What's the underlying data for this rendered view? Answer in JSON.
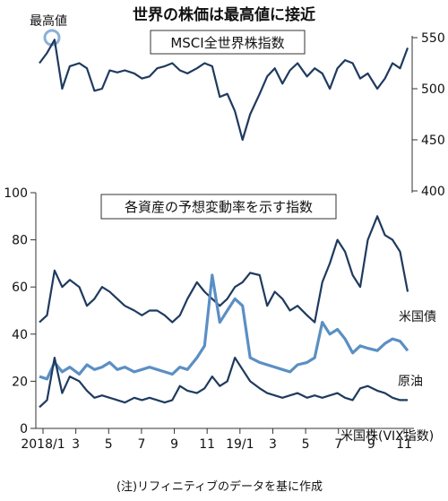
{
  "title": "世界の株価は最高値に接近",
  "source_note": "(注)リフィニティブのデータを基に作成",
  "annotation": "最高値",
  "chart_data": [
    {
      "type": "line",
      "title": "MSCI全世界株指数",
      "y_axis_side": "right",
      "ylim": [
        400,
        550
      ],
      "yticks": [
        400,
        450,
        500,
        550
      ],
      "x": [
        2018.0,
        2018.04,
        2018.08,
        2018.12,
        2018.16,
        2018.21,
        2018.25,
        2018.29,
        2018.33,
        2018.37,
        2018.41,
        2018.45,
        2018.5,
        2018.54,
        2018.58,
        2018.62,
        2018.66,
        2018.7,
        2018.74,
        2018.78,
        2018.83,
        2018.87,
        2018.91,
        2018.95,
        2018.99,
        2019.03,
        2019.07,
        2019.11,
        2019.16,
        2019.2,
        2019.24,
        2019.28,
        2019.32,
        2019.36,
        2019.41,
        2019.45,
        2019.49,
        2019.53,
        2019.57,
        2019.61,
        2019.65,
        2019.69,
        2019.73,
        2019.78,
        2019.82,
        2019.86,
        2019.9,
        2019.94
      ],
      "series": [
        {
          "name": "",
          "color": "#1f3a5f",
          "values": [
            525,
            535,
            548,
            500,
            522,
            525,
            520,
            498,
            500,
            518,
            516,
            518,
            515,
            510,
            512,
            520,
            522,
            525,
            518,
            515,
            520,
            525,
            522,
            492,
            495,
            478,
            450,
            475,
            495,
            512,
            520,
            505,
            518,
            525,
            512,
            520,
            515,
            500,
            520,
            528,
            525,
            510,
            515,
            500,
            510,
            525,
            520,
            540
          ]
        }
      ]
    },
    {
      "type": "line",
      "title": "各資産の予想変動率を示す指数",
      "y_axis_side": "left",
      "ylim": [
        0,
        100
      ],
      "yticks": [
        0,
        20,
        40,
        60,
        80,
        100
      ],
      "x_tick_labels": [
        "2018/1",
        "3",
        "5",
        "7",
        "9",
        "11",
        "19/1",
        "3",
        "5",
        "7",
        "9",
        "11"
      ],
      "x": [
        2018.0,
        2018.04,
        2018.08,
        2018.12,
        2018.16,
        2018.21,
        2018.25,
        2018.29,
        2018.33,
        2018.37,
        2018.41,
        2018.45,
        2018.5,
        2018.54,
        2018.58,
        2018.62,
        2018.66,
        2018.7,
        2018.74,
        2018.78,
        2018.83,
        2018.87,
        2018.91,
        2018.95,
        2018.99,
        2019.03,
        2019.07,
        2019.11,
        2019.16,
        2019.2,
        2019.24,
        2019.28,
        2019.32,
        2019.36,
        2019.41,
        2019.45,
        2019.49,
        2019.53,
        2019.57,
        2019.61,
        2019.65,
        2019.69,
        2019.73,
        2019.78,
        2019.82,
        2019.86,
        2019.9,
        2019.94
      ],
      "series": [
        {
          "name": "米国債",
          "color": "#1f3a5f",
          "values": [
            45,
            48,
            67,
            60,
            63,
            60,
            52,
            55,
            60,
            58,
            55,
            52,
            50,
            48,
            50,
            50,
            48,
            45,
            48,
            55,
            62,
            58,
            55,
            52,
            55,
            60,
            62,
            66,
            65,
            52,
            58,
            55,
            50,
            52,
            48,
            45,
            62,
            70,
            80,
            75,
            65,
            60,
            80,
            90,
            82,
            80,
            75,
            58
          ]
        },
        {
          "name": "原油",
          "color": "#5b8fc4",
          "values": [
            22,
            21,
            28,
            24,
            26,
            23,
            27,
            25,
            26,
            28,
            25,
            26,
            24,
            25,
            26,
            25,
            24,
            23,
            26,
            25,
            30,
            35,
            65,
            45,
            50,
            55,
            52,
            30,
            28,
            27,
            26,
            25,
            24,
            27,
            28,
            30,
            45,
            40,
            42,
            38,
            32,
            35,
            34,
            33,
            36,
            38,
            37,
            33
          ]
        },
        {
          "name": "米国株(VIX指数)",
          "color": "#1f3a5f",
          "values": [
            9,
            12,
            30,
            15,
            22,
            20,
            16,
            13,
            14,
            13,
            12,
            11,
            13,
            12,
            13,
            12,
            11,
            12,
            18,
            16,
            15,
            17,
            22,
            18,
            20,
            30,
            25,
            20,
            17,
            15,
            14,
            13,
            14,
            15,
            13,
            14,
            13,
            14,
            15,
            13,
            12,
            17,
            18,
            16,
            15,
            13,
            12,
            12
          ]
        }
      ]
    }
  ]
}
